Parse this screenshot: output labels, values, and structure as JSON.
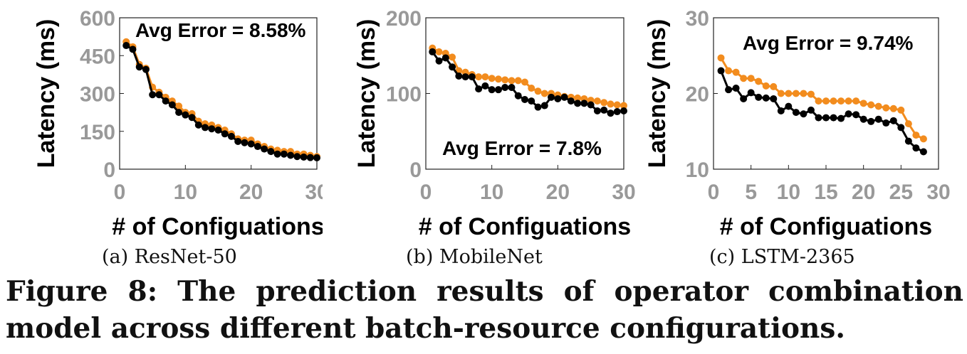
{
  "colors": {
    "measured": "#000000",
    "predicted": "#f28c1e",
    "axis": "#999999",
    "text": "#000000"
  },
  "figure_caption": "Figure 8: The prediction results of operator combination model across different batch-resource configurations.",
  "chart_data": [
    {
      "type": "line",
      "subcaption": "(a)  ResNet-50",
      "annotation": "Avg Error = 8.58%",
      "xlabel": "# of Configuations",
      "ylabel": "Latency (ms)",
      "xlim": [
        0,
        30
      ],
      "ylim": [
        0,
        600
      ],
      "xticks": [
        0,
        10,
        20,
        30
      ],
      "yticks": [
        0,
        150,
        300,
        450,
        600
      ],
      "x": [
        1,
        2,
        3,
        4,
        5,
        6,
        7,
        8,
        9,
        10,
        11,
        12,
        13,
        14,
        15,
        16,
        17,
        18,
        19,
        20,
        21,
        22,
        23,
        24,
        25,
        26,
        27,
        28,
        29,
        30
      ],
      "series": [
        {
          "color": "#f28c1e",
          "values": [
            505,
            485,
            415,
            400,
            325,
            305,
            285,
            270,
            250,
            225,
            220,
            190,
            180,
            175,
            165,
            155,
            140,
            120,
            115,
            115,
            100,
            90,
            80,
            75,
            70,
            70,
            60,
            60,
            55,
            50
          ]
        },
        {
          "color": "#000000",
          "values": [
            490,
            475,
            405,
            395,
            295,
            295,
            270,
            255,
            225,
            215,
            205,
            175,
            165,
            160,
            155,
            140,
            130,
            110,
            105,
            100,
            90,
            80,
            70,
            60,
            60,
            55,
            50,
            48,
            46,
            45
          ]
        }
      ]
    },
    {
      "type": "line",
      "subcaption": "(b)  MobileNet",
      "annotation": "Avg Error = 7.8%",
      "xlabel": "# of Configuations",
      "ylabel": "Latency (ms)",
      "xlim": [
        0,
        30
      ],
      "ylim": [
        0,
        200
      ],
      "xticks": [
        0,
        10,
        20,
        30
      ],
      "yticks": [
        0,
        100,
        200
      ],
      "x": [
        1,
        2,
        3,
        4,
        5,
        6,
        7,
        8,
        9,
        10,
        11,
        12,
        13,
        14,
        15,
        16,
        17,
        18,
        19,
        20,
        21,
        22,
        23,
        24,
        25,
        26,
        27,
        28,
        29,
        30
      ],
      "series": [
        {
          "color": "#f28c1e",
          "values": [
            160,
            155,
            153,
            148,
            130,
            128,
            125,
            122,
            122,
            120,
            119,
            118,
            117,
            117,
            115,
            107,
            103,
            100,
            100,
            98,
            96,
            95,
            94,
            93,
            91,
            90,
            88,
            86,
            85,
            84
          ]
        },
        {
          "color": "#000000",
          "values": [
            155,
            143,
            147,
            135,
            123,
            122,
            122,
            106,
            110,
            105,
            105,
            108,
            108,
            97,
            92,
            90,
            82,
            84,
            95,
            93,
            95,
            90,
            87,
            87,
            85,
            77,
            78,
            74,
            76,
            77
          ]
        }
      ]
    },
    {
      "type": "line",
      "subcaption": "(c)  LSTM-2365",
      "annotation": "Avg Error = 9.74%",
      "xlabel": "# of Configuations",
      "ylabel": "Latency (ms)",
      "xlim": [
        0,
        30
      ],
      "ylim": [
        10,
        30
      ],
      "xticks": [
        0,
        5,
        10,
        15,
        20,
        25,
        30
      ],
      "yticks": [
        10,
        20,
        30
      ],
      "x": [
        1,
        2,
        3,
        4,
        5,
        6,
        7,
        8,
        9,
        10,
        11,
        12,
        13,
        14,
        15,
        16,
        17,
        18,
        19,
        20,
        21,
        22,
        23,
        24,
        25,
        26,
        27,
        28
      ],
      "series": [
        {
          "color": "#f28c1e",
          "values": [
            24.7,
            23.0,
            22.8,
            22.0,
            22.0,
            21.6,
            21.0,
            20.9,
            20.0,
            20.0,
            20.0,
            20.0,
            19.9,
            19.0,
            19.0,
            19.0,
            19.0,
            19.0,
            19.0,
            18.7,
            18.5,
            18.3,
            18.1,
            18.0,
            17.8,
            16.0,
            14.5,
            14.0
          ]
        },
        {
          "color": "#000000",
          "values": [
            23.0,
            20.5,
            20.7,
            19.3,
            20.1,
            19.5,
            19.4,
            19.3,
            17.7,
            18.3,
            17.5,
            17.3,
            17.8,
            16.8,
            16.8,
            16.8,
            16.7,
            17.3,
            17.2,
            16.6,
            16.3,
            16.6,
            16.1,
            16.4,
            15.5,
            13.7,
            12.8,
            12.3
          ]
        }
      ]
    }
  ]
}
